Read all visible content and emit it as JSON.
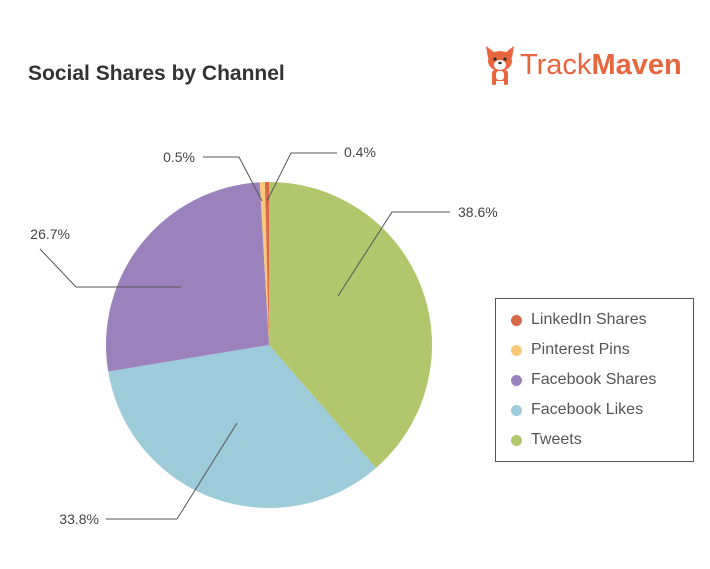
{
  "header": {
    "title": "Social Shares by Channel",
    "logo_text_light": "Track",
    "logo_text_bold": "Maven"
  },
  "colors": {
    "linkedin": "#d9684a",
    "pinterest": "#f7c978",
    "facebook_shares": "#9b82bd",
    "facebook_likes": "#9dcbd9",
    "tweets": "#b2c76c",
    "logo": "#e8663d"
  },
  "chart_data": {
    "type": "pie",
    "title": "Social Shares by Channel",
    "start_angle_deg": 0,
    "direction": "clockwise",
    "legend_placement": "right",
    "slices": [
      {
        "name": "Tweets",
        "value": 38.6,
        "label": "38.6%",
        "color": "#b2c76c"
      },
      {
        "name": "Facebook Likes",
        "value": 33.8,
        "label": "33.8%",
        "color": "#9dcbd9"
      },
      {
        "name": "Facebook Shares",
        "value": 26.7,
        "label": "26.7%",
        "color": "#9b82bd"
      },
      {
        "name": "Pinterest Pins",
        "value": 0.5,
        "label": "0.5%",
        "color": "#f7c978"
      },
      {
        "name": "LinkedIn Shares",
        "value": 0.4,
        "label": "0.4%",
        "color": "#d9684a"
      }
    ],
    "legend": [
      {
        "label": "LinkedIn Shares",
        "color": "#d9684a"
      },
      {
        "label": "Pinterest Pins",
        "color": "#f7c978"
      },
      {
        "label": "Facebook Shares",
        "color": "#9b82bd"
      },
      {
        "label": "Facebook Likes",
        "color": "#9dcbd9"
      },
      {
        "label": "Tweets",
        "color": "#b2c76c"
      }
    ]
  }
}
